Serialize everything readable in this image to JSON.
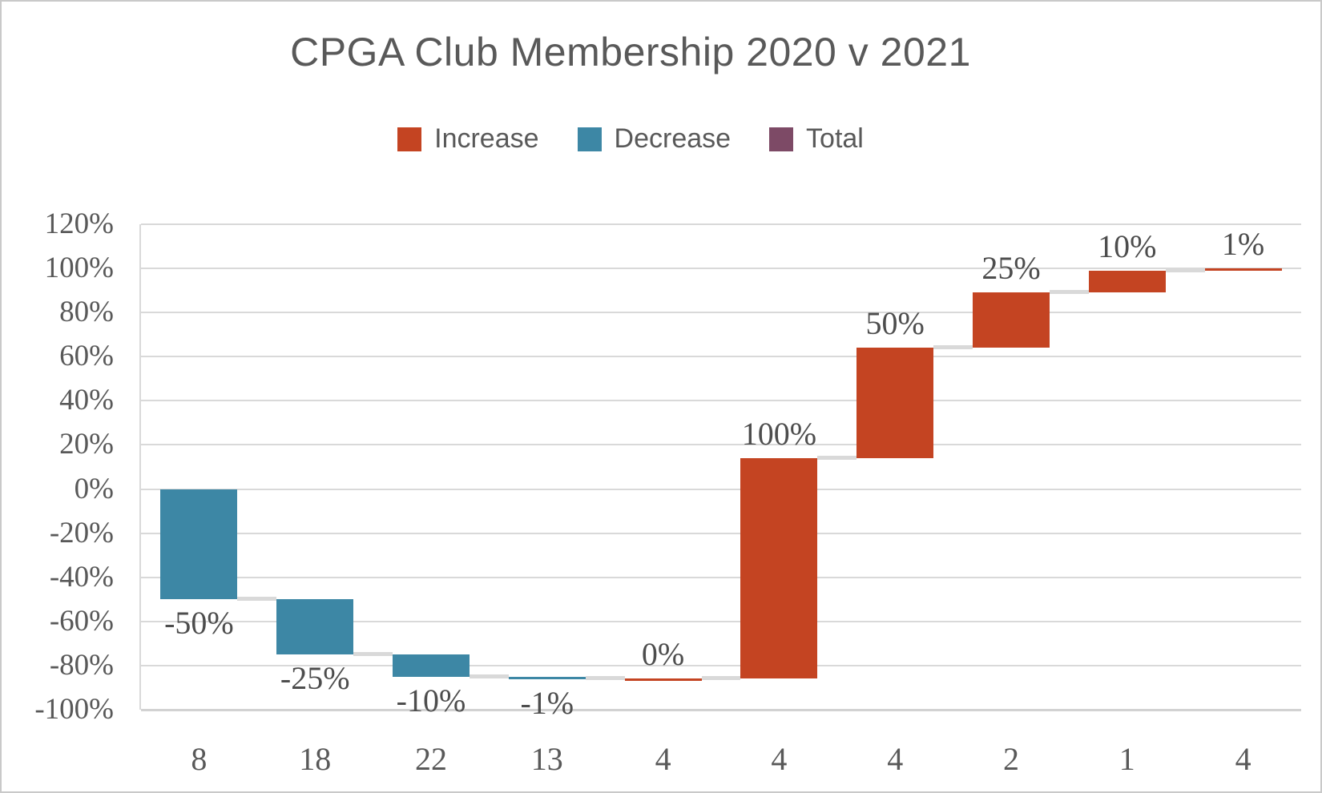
{
  "chart_data": {
    "type": "waterfall",
    "title": "CPGA Club Membership 2020 v 2021",
    "legend": [
      {
        "label": "Increase",
        "kind": "increase"
      },
      {
        "label": "Decrease",
        "kind": "decrease"
      },
      {
        "label": "Total",
        "kind": "total"
      }
    ],
    "colors": {
      "increase": "#C44422",
      "decrease": "#3D87A5",
      "total": "#7D4A66",
      "gridline": "#D9D9D9",
      "text": "#595959"
    },
    "categories": [
      "8",
      "18",
      "22",
      "13",
      "4",
      "4",
      "4",
      "2",
      "1",
      "4"
    ],
    "series": [
      {
        "category": "8",
        "value": -50,
        "label": "-50%",
        "kind": "decrease"
      },
      {
        "category": "18",
        "value": -25,
        "label": "-25%",
        "kind": "decrease"
      },
      {
        "category": "22",
        "value": -10,
        "label": "-10%",
        "kind": "decrease"
      },
      {
        "category": "13",
        "value": -1,
        "label": "-1%",
        "kind": "decrease"
      },
      {
        "category": "4",
        "value": 0,
        "label": "0%",
        "kind": "increase"
      },
      {
        "category": "4",
        "value": 100,
        "label": "100%",
        "kind": "increase"
      },
      {
        "category": "4",
        "value": 50,
        "label": "50%",
        "kind": "increase"
      },
      {
        "category": "2",
        "value": 25,
        "label": "25%",
        "kind": "increase"
      },
      {
        "category": "1",
        "value": 10,
        "label": "10%",
        "kind": "increase"
      },
      {
        "category": "4",
        "value": 1,
        "label": "1%",
        "kind": "increase"
      }
    ],
    "cumulative_start": 0,
    "y_axis": {
      "min": -100,
      "max": 120,
      "step": 20,
      "tick_labels": [
        "120%",
        "100%",
        "80%",
        "60%",
        "40%",
        "20%",
        "0%",
        "-20%",
        "-40%",
        "-60%",
        "-80%",
        "-100%"
      ]
    },
    "grid": true,
    "legend_position": "top"
  }
}
